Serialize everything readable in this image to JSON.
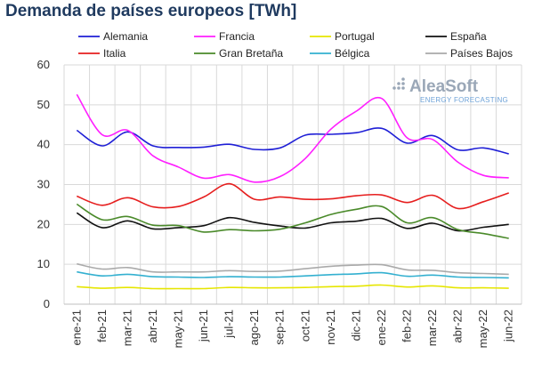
{
  "chart_data": {
    "type": "line",
    "title": "Demanda de países europeos [TWh]",
    "xlabel": "",
    "ylabel": "",
    "ylim": [
      0,
      60
    ],
    "yticks": [
      0,
      10,
      20,
      30,
      40,
      50,
      60
    ],
    "grid": true,
    "legend_position": "top",
    "categories": [
      "ene-21",
      "feb-21",
      "mar-21",
      "abr-21",
      "may-21",
      "jun-21",
      "jul-21",
      "ago-21",
      "sep-21",
      "oct-21",
      "nov-21",
      "dic-21",
      "ene-22",
      "feb-22",
      "mar-22",
      "abr-22",
      "may-22",
      "jun-22"
    ],
    "series": [
      {
        "name": "Alemania",
        "color": "#1f1fd6",
        "values": [
          43.6,
          39.7,
          43.2,
          39.7,
          39.3,
          39.4,
          40.1,
          38.8,
          39.2,
          42.4,
          42.6,
          43.0,
          44.1,
          40.4,
          42.3,
          38.7,
          39.2,
          37.7
        ]
      },
      {
        "name": "Francia",
        "color": "#ff1fff",
        "values": [
          52.6,
          42.5,
          43.6,
          37.2,
          34.4,
          31.6,
          32.5,
          30.6,
          32.0,
          36.6,
          43.9,
          48.4,
          51.6,
          41.7,
          41.3,
          35.6,
          32.3,
          31.7
        ]
      },
      {
        "name": "Portugal",
        "color": "#e6e600",
        "values": [
          4.4,
          4.0,
          4.2,
          3.9,
          3.9,
          3.9,
          4.2,
          4.1,
          4.1,
          4.2,
          4.4,
          4.5,
          4.8,
          4.3,
          4.6,
          4.1,
          4.1,
          4.0
        ]
      },
      {
        "name": "España",
        "color": "#111111",
        "values": [
          22.9,
          19.2,
          20.9,
          18.9,
          19.2,
          19.7,
          21.7,
          20.5,
          19.6,
          19.1,
          20.4,
          20.8,
          21.5,
          19.0,
          20.3,
          18.4,
          19.3,
          20.0
        ]
      },
      {
        "name": "Italia",
        "color": "#e61e1e",
        "values": [
          27.1,
          24.8,
          26.7,
          24.4,
          24.5,
          26.9,
          30.2,
          26.3,
          26.9,
          26.3,
          26.4,
          27.2,
          27.4,
          25.5,
          27.3,
          24.0,
          25.7,
          27.9
        ]
      },
      {
        "name": "Gran Bretaña",
        "color": "#4a8a2a",
        "values": [
          25.1,
          21.2,
          22.0,
          19.8,
          19.7,
          18.1,
          18.7,
          18.4,
          18.8,
          20.4,
          22.5,
          23.8,
          24.5,
          20.4,
          21.7,
          18.7,
          17.7,
          16.5
        ]
      },
      {
        "name": "Bélgica",
        "color": "#33b0d0",
        "values": [
          8.1,
          7.1,
          7.5,
          6.9,
          6.8,
          6.7,
          6.9,
          6.8,
          6.8,
          7.1,
          7.4,
          7.6,
          7.9,
          7.0,
          7.3,
          6.8,
          6.7,
          6.6
        ]
      },
      {
        "name": "Países Bajos",
        "color": "#aaaaaa",
        "values": [
          10.1,
          8.8,
          9.2,
          8.1,
          8.1,
          8.1,
          8.4,
          8.2,
          8.3,
          8.9,
          9.5,
          9.8,
          9.9,
          8.6,
          8.5,
          7.9,
          7.7,
          7.5
        ]
      }
    ]
  },
  "logo": {
    "name": "AleaSoft",
    "tagline": "ENERGY FORECASTING",
    "color": "#9aa7b7",
    "tagline_color": "#6fa3d8"
  }
}
